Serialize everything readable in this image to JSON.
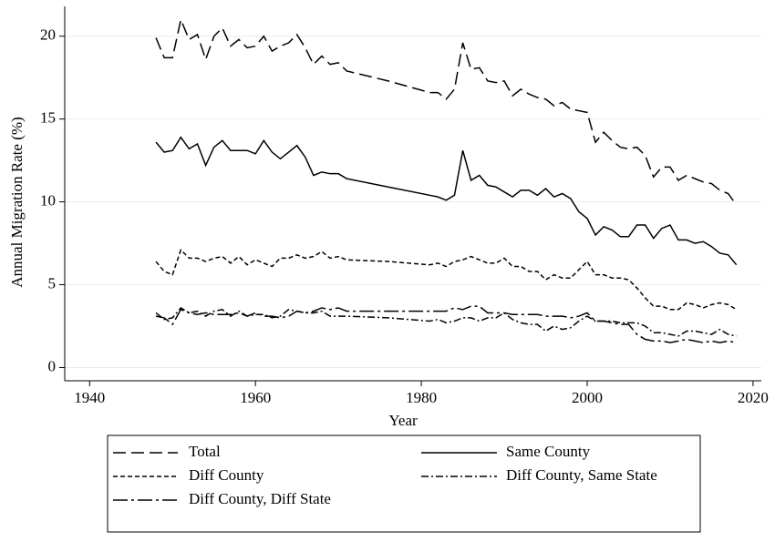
{
  "chart_data": {
    "type": "line",
    "xlabel": "Year",
    "ylabel": "Annual Migration Rate (%)",
    "x": [
      1948,
      1949,
      1950,
      1951,
      1952,
      1953,
      1954,
      1955,
      1956,
      1957,
      1958,
      1959,
      1960,
      1961,
      1962,
      1963,
      1964,
      1965,
      1966,
      1967,
      1968,
      1969,
      1970,
      1971,
      1976,
      1981,
      1982,
      1983,
      1984,
      1985,
      1986,
      1987,
      1988,
      1989,
      1990,
      1991,
      1992,
      1993,
      1994,
      1995,
      1996,
      1997,
      1998,
      1999,
      2000,
      2001,
      2002,
      2003,
      2004,
      2005,
      2006,
      2007,
      2008,
      2009,
      2010,
      2011,
      2012,
      2013,
      2014,
      2015,
      2016,
      2017,
      2018
    ],
    "series": [
      {
        "name": "Total",
        "color": "#000000",
        "dash": "14 6",
        "values": [
          19.9,
          18.7,
          18.7,
          21.0,
          19.8,
          20.1,
          18.6,
          20.0,
          20.5,
          19.4,
          19.8,
          19.3,
          19.4,
          20.0,
          19.1,
          19.4,
          19.6,
          20.1,
          19.3,
          18.3,
          18.8,
          18.3,
          18.4,
          17.9,
          17.3,
          16.6,
          16.6,
          16.2,
          16.8,
          19.6,
          18.0,
          18.1,
          17.3,
          17.2,
          17.3,
          16.4,
          16.8,
          16.5,
          16.3,
          16.2,
          15.8,
          16.0,
          15.6,
          15.5,
          15.4,
          13.6,
          14.2,
          13.7,
          13.3,
          13.2,
          13.3,
          12.8,
          11.5,
          12.1,
          12.1,
          11.3,
          11.6,
          11.4,
          11.2,
          11.1,
          10.7,
          10.5,
          9.8
        ]
      },
      {
        "name": "Same County",
        "color": "#000000",
        "dash": "none",
        "values": [
          13.6,
          13.0,
          13.1,
          13.9,
          13.2,
          13.5,
          12.2,
          13.3,
          13.7,
          13.1,
          13.1,
          13.1,
          12.9,
          13.7,
          13.0,
          12.6,
          13.0,
          13.4,
          12.7,
          11.6,
          11.8,
          11.7,
          11.7,
          11.4,
          10.9,
          10.4,
          10.3,
          10.1,
          10.4,
          13.1,
          11.3,
          11.6,
          11.0,
          10.9,
          10.6,
          10.3,
          10.7,
          10.7,
          10.4,
          10.8,
          10.3,
          10.5,
          10.2,
          9.4,
          9.0,
          8.0,
          8.5,
          8.3,
          7.9,
          7.9,
          8.6,
          8.6,
          7.8,
          8.4,
          8.6,
          7.7,
          7.7,
          7.5,
          7.6,
          7.3,
          6.9,
          6.8,
          6.2
        ]
      },
      {
        "name": "Diff County",
        "color": "#000000",
        "dash": "5 3",
        "values": [
          6.4,
          5.8,
          5.6,
          7.1,
          6.6,
          6.6,
          6.4,
          6.6,
          6.7,
          6.3,
          6.7,
          6.2,
          6.5,
          6.3,
          6.1,
          6.6,
          6.6,
          6.8,
          6.6,
          6.7,
          7.0,
          6.6,
          6.7,
          6.5,
          6.4,
          6.2,
          6.3,
          6.1,
          6.4,
          6.5,
          6.7,
          6.5,
          6.3,
          6.3,
          6.6,
          6.1,
          6.1,
          5.8,
          5.8,
          5.3,
          5.6,
          5.4,
          5.4,
          5.9,
          6.4,
          5.6,
          5.6,
          5.4,
          5.4,
          5.3,
          4.8,
          4.2,
          3.7,
          3.7,
          3.5,
          3.5,
          3.9,
          3.8,
          3.6,
          3.8,
          3.9,
          3.8,
          3.5
        ]
      },
      {
        "name": "Diff County, Same State",
        "color": "#000000",
        "dash": "8 3 2 3",
        "values": [
          3.3,
          2.9,
          3.0,
          3.6,
          3.3,
          3.4,
          3.1,
          3.4,
          3.5,
          3.1,
          3.4,
          3.1,
          3.2,
          3.2,
          3.0,
          3.1,
          3.5,
          3.4,
          3.3,
          3.3,
          3.4,
          3.1,
          3.1,
          3.1,
          3.0,
          2.8,
          2.9,
          2.7,
          2.8,
          3.0,
          3.0,
          2.8,
          3.0,
          3.0,
          3.3,
          2.9,
          2.7,
          2.6,
          2.6,
          2.2,
          2.5,
          2.3,
          2.4,
          2.8,
          3.1,
          2.8,
          2.8,
          2.8,
          2.7,
          2.7,
          2.7,
          2.5,
          2.1,
          2.1,
          2.0,
          1.9,
          2.2,
          2.2,
          2.1,
          2.0,
          2.3,
          2.0,
          1.9
        ]
      },
      {
        "name": "Diff County, Diff State",
        "color": "#000000",
        "dash": "16 4 3 4",
        "values": [
          3.1,
          3.0,
          2.6,
          3.5,
          3.3,
          3.2,
          3.3,
          3.2,
          3.2,
          3.2,
          3.3,
          3.1,
          3.3,
          3.1,
          3.1,
          3.0,
          3.1,
          3.4,
          3.3,
          3.4,
          3.6,
          3.5,
          3.6,
          3.4,
          3.4,
          3.4,
          3.4,
          3.4,
          3.6,
          3.5,
          3.7,
          3.7,
          3.3,
          3.3,
          3.3,
          3.2,
          3.2,
          3.2,
          3.2,
          3.1,
          3.1,
          3.1,
          3.0,
          3.1,
          3.3,
          2.8,
          2.8,
          2.7,
          2.6,
          2.6,
          2.0,
          1.7,
          1.6,
          1.6,
          1.5,
          1.6,
          1.7,
          1.6,
          1.5,
          1.6,
          1.5,
          1.6,
          1.5
        ]
      }
    ],
    "xlim": [
      1937,
      2021
    ],
    "xticks": [
      1940,
      1960,
      1980,
      2000,
      2020
    ],
    "ylim": [
      -0.8,
      21.8
    ],
    "yticks": [
      0,
      5,
      10,
      15,
      20
    ],
    "grid": true,
    "legend": "bottom"
  }
}
